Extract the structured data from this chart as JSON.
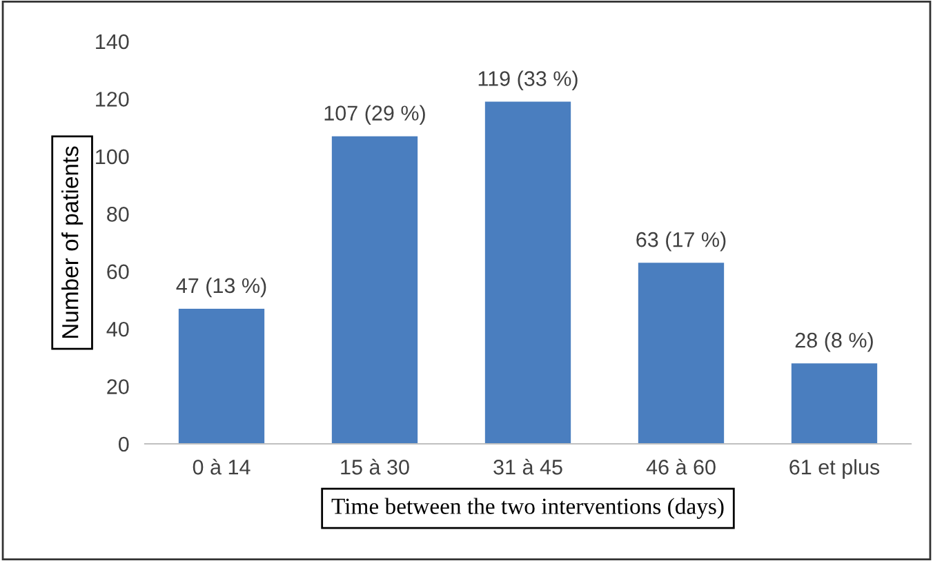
{
  "chart_data": {
    "type": "bar",
    "categories": [
      "0 à 14",
      "15 à 30",
      "31 à 45",
      "46 à 60",
      "61 et plus"
    ],
    "values": [
      47,
      107,
      119,
      63,
      28
    ],
    "value_labels": [
      "47 (13 %)",
      "107 (29 %)",
      "119 (33 %)",
      "63 (17 %)",
      "28 (8 %)"
    ],
    "color": "#4a7ebf",
    "xlabel": "Time between the two interventions (days)",
    "ylabel": "Number of patients",
    "ylim": [
      0,
      140
    ],
    "yticks": [
      0,
      20,
      40,
      60,
      80,
      100,
      120,
      140
    ],
    "grid": false,
    "legend": false
  }
}
